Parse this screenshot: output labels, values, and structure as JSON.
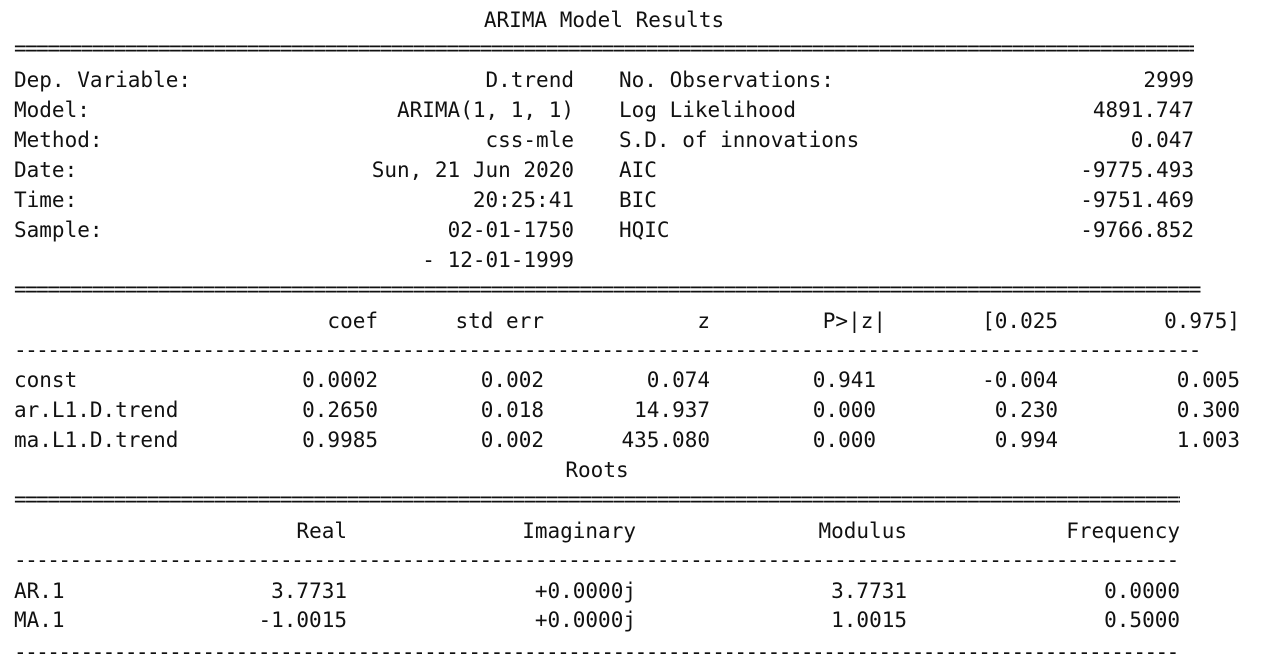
{
  "report": {
    "title": "ARIMA Model Results",
    "rule_double": "===========================================================================================================",
    "rule_single": "-----------------------------------------------------------------------------------------------------------",
    "info_rows": [
      {
        "left_label": "Dep. Variable:",
        "left_value": "D.trend",
        "right_label": "No. Observations:",
        "right_value": "2999"
      },
      {
        "left_label": "Model:",
        "left_value": "ARIMA(1, 1, 1)",
        "right_label": "Log Likelihood",
        "right_value": "4891.747"
      },
      {
        "left_label": "Method:",
        "left_value": "css-mle",
        "right_label": "S.D. of innovations",
        "right_value": "0.047"
      },
      {
        "left_label": "Date:",
        "left_value": "Sun, 21 Jun 2020",
        "right_label": "AIC",
        "right_value": "-9775.493"
      },
      {
        "left_label": "Time:",
        "left_value": "20:25:41",
        "right_label": "BIC",
        "right_value": "-9751.469"
      },
      {
        "left_label": "Sample:",
        "left_value": "02-01-1750",
        "right_label": "HQIC",
        "right_value": "-9766.852"
      }
    ],
    "sample_continuation": "- 12-01-1999",
    "coef_headers": [
      "coef",
      "std err",
      "z",
      "P>|z|",
      "[0.025",
      "0.975]"
    ],
    "coef_rows": [
      {
        "name": "const",
        "values": [
          "0.0002",
          "0.002",
          "0.074",
          "0.941",
          "-0.004",
          "0.005"
        ]
      },
      {
        "name": "ar.L1.D.trend",
        "values": [
          "0.2650",
          "0.018",
          "14.937",
          "0.000",
          "0.230",
          "0.300"
        ]
      },
      {
        "name": "ma.L1.D.trend",
        "values": [
          "0.9985",
          "0.002",
          "435.080",
          "0.000",
          "0.994",
          "1.003"
        ]
      }
    ],
    "roots_title": "Roots",
    "roots_headers": [
      "Real",
      "Imaginary",
      "Modulus",
      "Frequency"
    ],
    "roots_rows": [
      {
        "name": "AR.1",
        "values": [
          "3.7731",
          "+0.0000j",
          "3.7731",
          "0.0000"
        ]
      },
      {
        "name": "MA.1",
        "values": [
          "-1.0015",
          "+0.0000j",
          "1.0015",
          "0.5000"
        ]
      }
    ]
  }
}
